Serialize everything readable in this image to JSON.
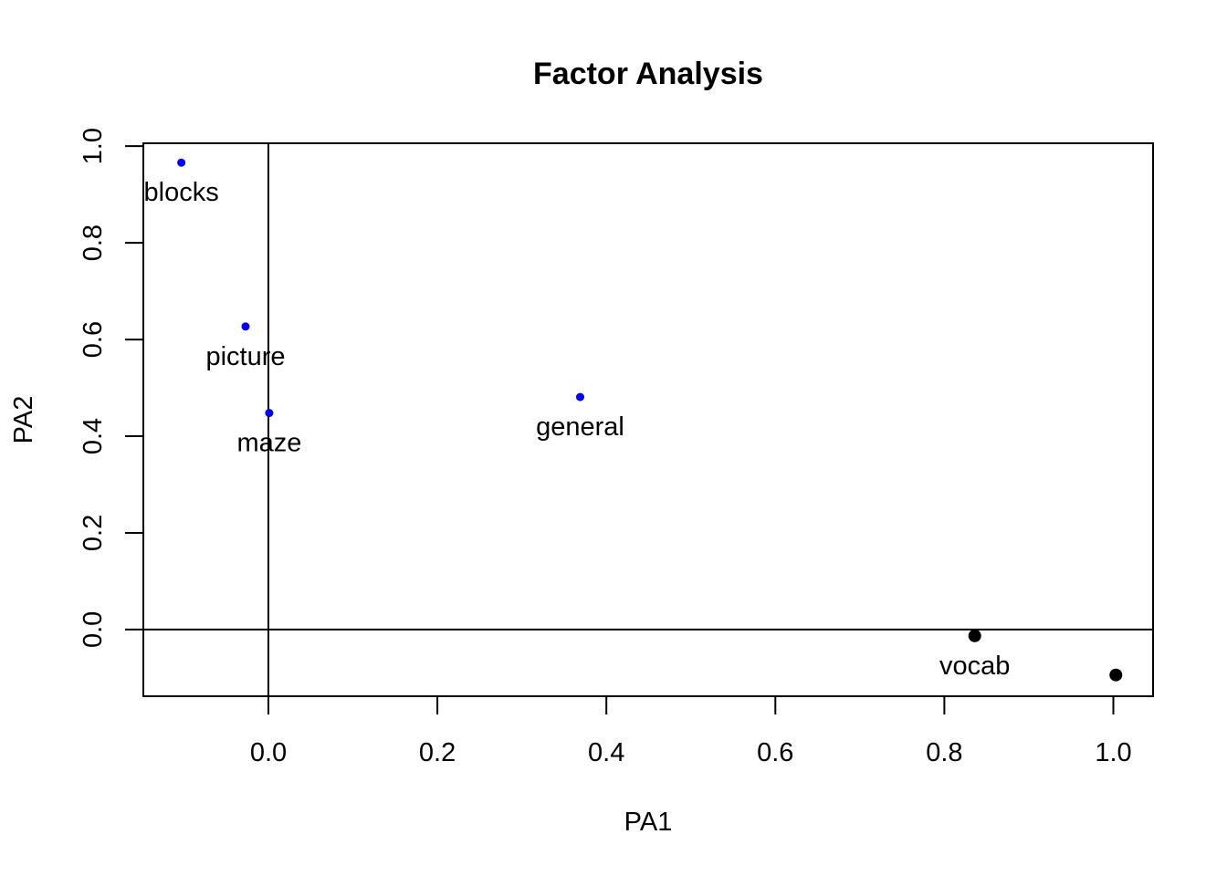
{
  "chart_data": {
    "type": "scatter",
    "title": "Factor Analysis",
    "xlabel": "PA1",
    "ylabel": "PA2",
    "xlim": [
      -0.148,
      1.047
    ],
    "ylim": [
      -0.138,
      1.006
    ],
    "xticks": [
      "0.0",
      "0.2",
      "0.4",
      "0.6",
      "0.8",
      "1.0"
    ],
    "xtick_values": [
      0.0,
      0.2,
      0.4,
      0.6,
      0.8,
      1.0
    ],
    "yticks": [
      "0.0",
      "0.2",
      "0.4",
      "0.6",
      "0.8",
      "1.0"
    ],
    "ytick_values": [
      0.0,
      0.2,
      0.4,
      0.6,
      0.8,
      1.0
    ],
    "reference_lines": {
      "h": 0,
      "v": 0
    },
    "grid": false,
    "points": [
      {
        "label": "blocks",
        "x": -0.103,
        "y": 0.966,
        "color": "#0000ff",
        "size": "small"
      },
      {
        "label": "picture",
        "x": -0.027,
        "y": 0.627,
        "color": "#0000ff",
        "size": "small"
      },
      {
        "label": "maze",
        "x": 0.001,
        "y": 0.448,
        "color": "#0000ff",
        "size": "small"
      },
      {
        "label": "general",
        "x": 0.369,
        "y": 0.481,
        "color": "#0000ff",
        "size": "small"
      },
      {
        "label": "vocab",
        "x": 0.836,
        "y": -0.013,
        "color": "#000000",
        "size": "large"
      },
      {
        "label": "",
        "x": 1.003,
        "y": -0.094,
        "color": "#000000",
        "size": "large"
      }
    ]
  }
}
